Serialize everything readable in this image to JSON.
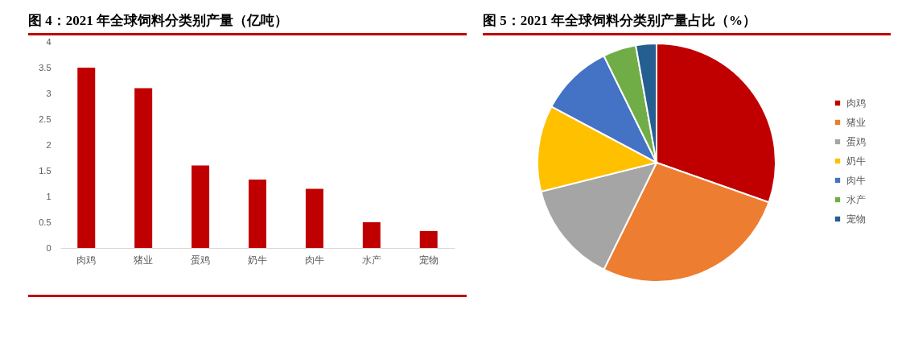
{
  "chart_data": [
    {
      "type": "bar",
      "title": "图 4：2021 年全球饲料分类别产量（亿吨）",
      "categories": [
        "肉鸡",
        "猪业",
        "蛋鸡",
        "奶牛",
        "肉牛",
        "水产",
        "宠物"
      ],
      "values": [
        3.5,
        3.1,
        1.6,
        1.33,
        1.15,
        0.5,
        0.33
      ],
      "color": "#c00000",
      "ylim": [
        0,
        4
      ],
      "yticks": [
        0,
        0.5,
        1,
        1.5,
        2,
        2.5,
        3,
        3.5,
        4
      ]
    },
    {
      "type": "pie",
      "title": "图 5：2021 年全球饲料分类别产量占比（%）",
      "categories": [
        "肉鸡",
        "猪业",
        "蛋鸡",
        "奶牛",
        "肉牛",
        "水产",
        "宠物"
      ],
      "values": [
        30.4,
        26.9,
        13.8,
        11.7,
        9.9,
        4.5,
        2.8
      ],
      "colors": [
        "#c00000",
        "#ed7d31",
        "#a5a5a5",
        "#ffc000",
        "#4472c4",
        "#70ad47",
        "#255e91"
      ],
      "legend": "right"
    }
  ]
}
